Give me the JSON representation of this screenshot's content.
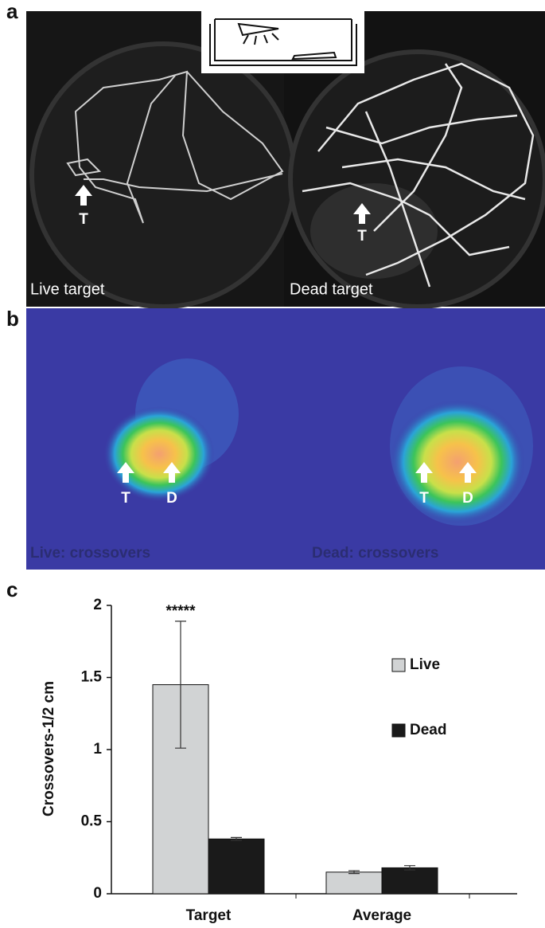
{
  "panels": {
    "a": {
      "label": "a",
      "left_caption": "Live target",
      "right_caption": "Dead target",
      "left_marker": "T",
      "right_marker": "T"
    },
    "b": {
      "label": "b",
      "left_caption": "Live: crossovers",
      "right_caption": "Dead: crossovers",
      "left_markers": [
        "T",
        "D"
      ],
      "right_markers": [
        "T",
        "D"
      ]
    },
    "c": {
      "label": "c"
    }
  },
  "chart_data": {
    "type": "bar",
    "ylabel": "Crossovers-1/2 cm",
    "annotation": "*****",
    "categories": [
      "Target",
      "Average"
    ],
    "series": [
      {
        "name": "Live",
        "color": "#d1d3d4",
        "values": [
          1.45,
          0.15
        ],
        "errors": [
          0.44,
          0.01
        ]
      },
      {
        "name": "Dead",
        "color": "#1a1a1a",
        "values": [
          0.38,
          0.18
        ],
        "errors": [
          0.01,
          0.015
        ]
      }
    ],
    "ylim": [
      0,
      2
    ],
    "yticks": [
      0,
      0.5,
      1,
      1.5,
      2
    ]
  }
}
